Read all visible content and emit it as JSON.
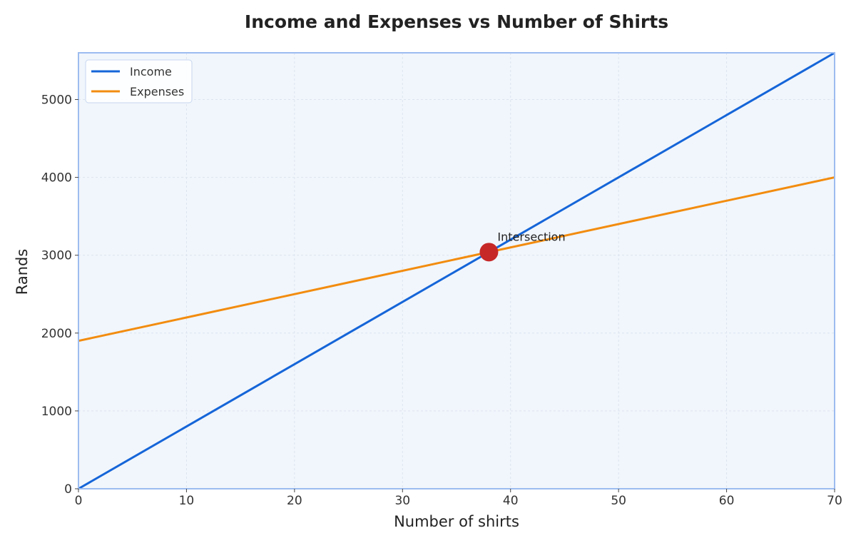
{
  "chart_data": {
    "type": "line",
    "title": "Income and Expenses vs Number of Shirts",
    "xlabel": "Number of shirts",
    "ylabel": "Rands",
    "xlim": [
      0,
      70
    ],
    "ylim": [
      0,
      5600
    ],
    "xticks": [
      0,
      10,
      20,
      30,
      40,
      50,
      60,
      70
    ],
    "yticks": [
      0,
      1000,
      2000,
      3000,
      4000,
      5000
    ],
    "grid": true,
    "legend_position": "top-left",
    "series": [
      {
        "name": "Income",
        "color": "#1565d8",
        "x": [
          0,
          70
        ],
        "y": [
          0,
          5600
        ]
      },
      {
        "name": "Expenses",
        "color": "#f28c0f",
        "x": [
          0,
          70
        ],
        "y": [
          1900,
          4000
        ]
      }
    ],
    "annotations": [
      {
        "text": "Intersection",
        "x": 38,
        "y": 3040,
        "marker_color": "#c62828"
      }
    ],
    "colors": {
      "background": "#f1f6fc",
      "frame": "#9cbcf0",
      "grid": "#dde4ee"
    }
  }
}
